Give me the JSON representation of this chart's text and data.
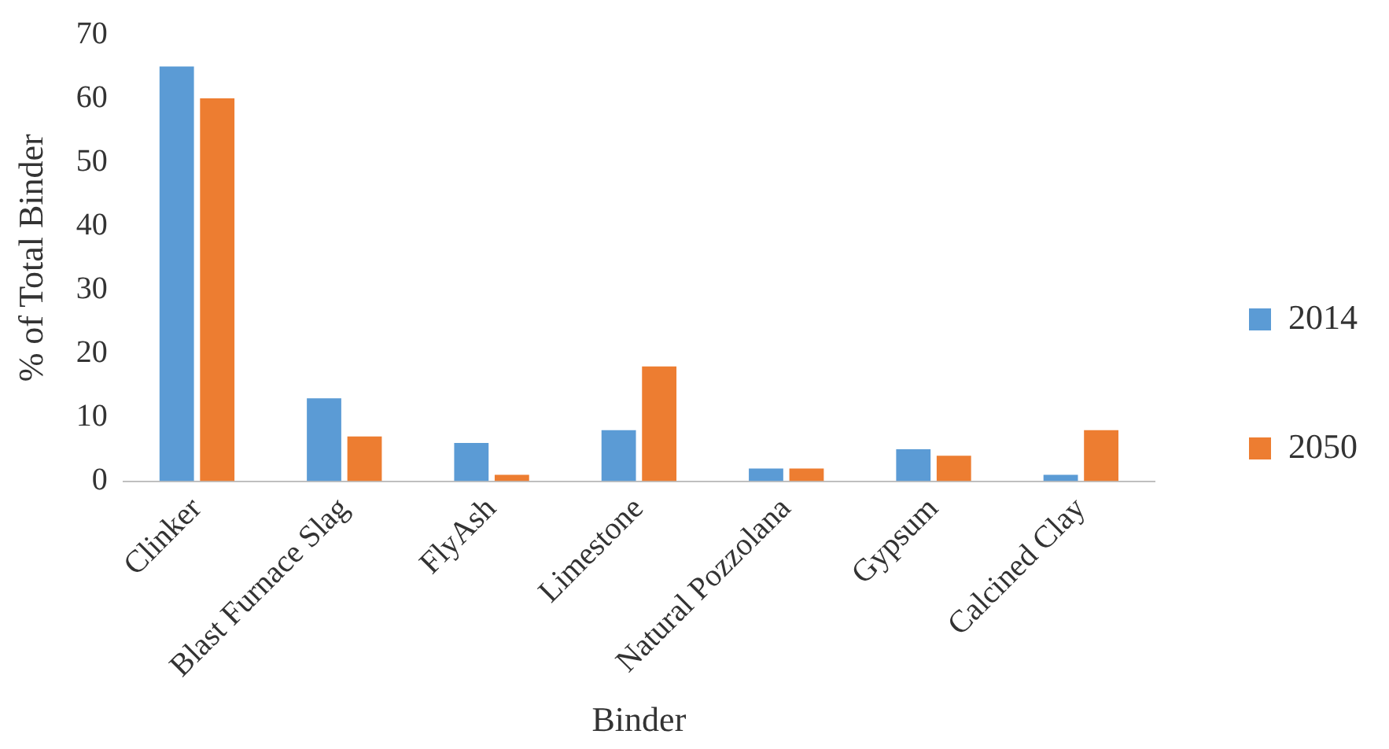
{
  "chart_data": {
    "type": "bar",
    "xlabel": "Binder",
    "ylabel": "% of Total Binder",
    "categories": [
      "Clinker",
      "Blast Furnace Slag",
      "FlyAsh",
      "Limestone",
      "Natural Pozzolana",
      "Gypsum",
      "Calcined Clay"
    ],
    "series": [
      {
        "name": "2014",
        "color": "#5b9bd5",
        "values": [
          65,
          13,
          6,
          8,
          2,
          5,
          1
        ]
      },
      {
        "name": "2050",
        "color": "#ed7d31",
        "values": [
          60,
          7,
          1,
          18,
          2,
          4,
          8
        ]
      }
    ],
    "ylim": [
      0,
      70
    ],
    "yticks": [
      0,
      10,
      20,
      30,
      40,
      50,
      60,
      70
    ],
    "grid": false,
    "legend": "right"
  }
}
